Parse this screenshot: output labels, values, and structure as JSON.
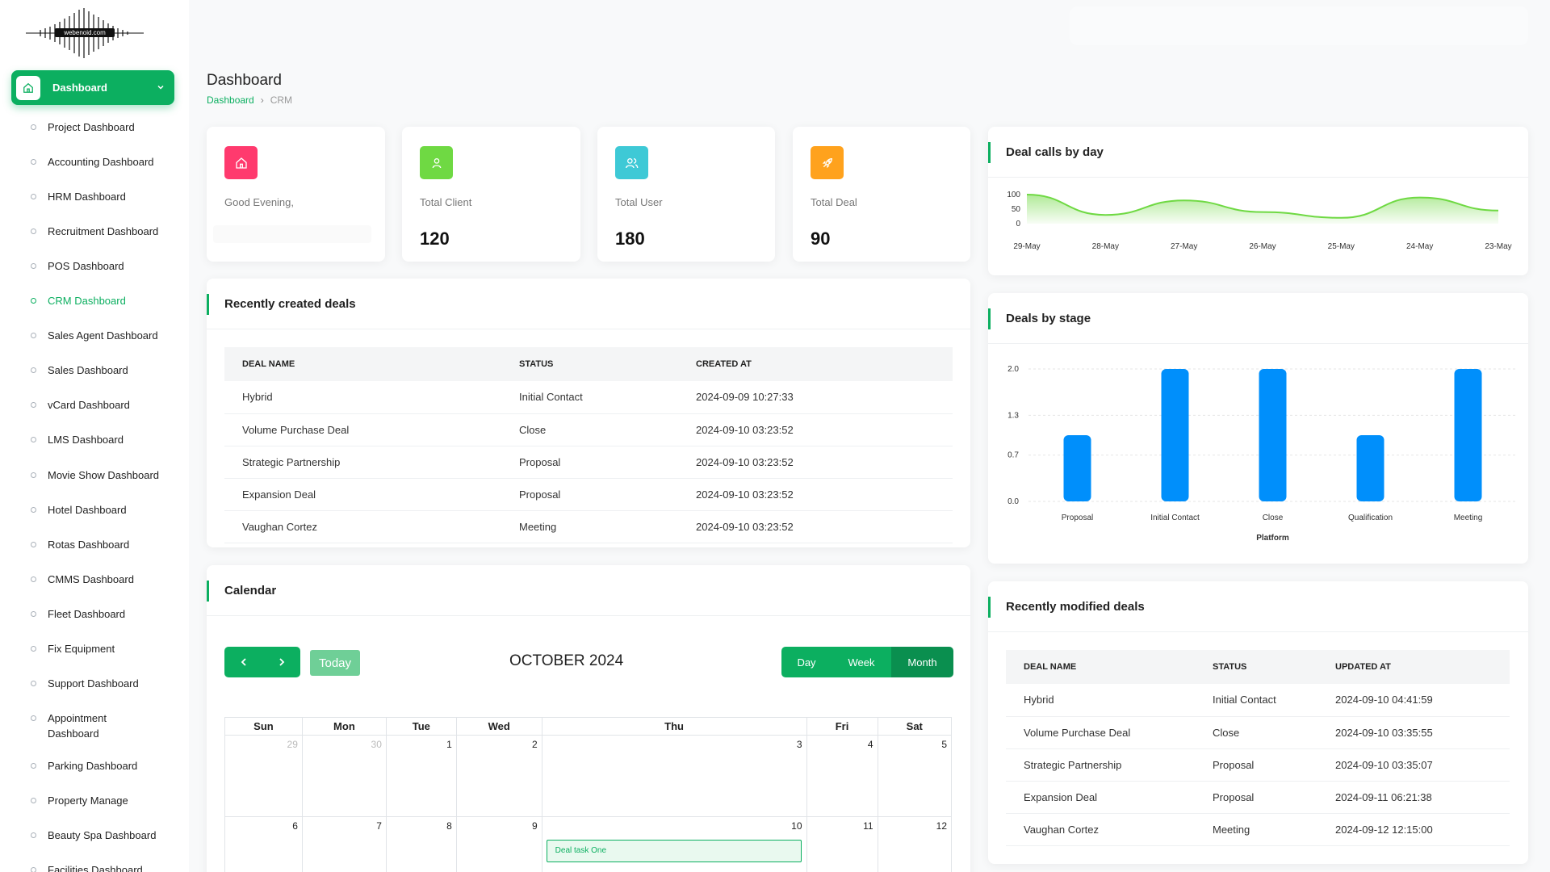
{
  "brand": {
    "logo_text": "webenoid.com"
  },
  "sidebar": {
    "main_label": "Dashboard",
    "items": [
      {
        "label": "Project Dashboard",
        "active": false
      },
      {
        "label": "Accounting Dashboard",
        "active": false
      },
      {
        "label": "HRM Dashboard",
        "active": false
      },
      {
        "label": "Recruitment Dashboard",
        "active": false
      },
      {
        "label": "POS Dashboard",
        "active": false
      },
      {
        "label": "CRM Dashboard",
        "active": true
      },
      {
        "label": "Sales Agent Dashboard",
        "active": false
      },
      {
        "label": "Sales Dashboard",
        "active": false
      },
      {
        "label": "vCard Dashboard",
        "active": false
      },
      {
        "label": "LMS Dashboard",
        "active": false
      },
      {
        "label": "Movie Show Dashboard",
        "active": false
      },
      {
        "label": "Hotel Dashboard",
        "active": false
      },
      {
        "label": "Rotas Dashboard",
        "active": false
      },
      {
        "label": "CMMS Dashboard",
        "active": false
      },
      {
        "label": "Fleet Dashboard",
        "active": false
      },
      {
        "label": "Fix Equipment",
        "active": false
      },
      {
        "label": "Support Dashboard",
        "active": false
      },
      {
        "label": "Appointment Dashboard",
        "active": false
      },
      {
        "label": "Parking Dashboard",
        "active": false
      },
      {
        "label": "Property Manage",
        "active": false
      },
      {
        "label": "Beauty Spa Dashboard",
        "active": false
      },
      {
        "label": "Facilities Dashboard",
        "active": false
      }
    ]
  },
  "header": {
    "title": "Dashboard",
    "breadcrumb": [
      "Dashboard",
      "CRM"
    ]
  },
  "stats": [
    {
      "label": "Good Evening,",
      "value": "",
      "color": "#ff3a6e",
      "icon": "home-icon"
    },
    {
      "label": "Total Client",
      "value": "120",
      "color": "#6fd943",
      "icon": "user-icon"
    },
    {
      "label": "Total User",
      "value": "180",
      "color": "#3ec9d6",
      "icon": "users-icon"
    },
    {
      "label": "Total Deal",
      "value": "90",
      "color": "#ffa21d",
      "icon": "rocket-icon"
    }
  ],
  "recent_deals": {
    "title": "Recently created deals",
    "columns": [
      "DEAL NAME",
      "STATUS",
      "CREATED AT"
    ],
    "rows": [
      [
        "Hybrid",
        "Initial Contact",
        "2024-09-09 10:27:33"
      ],
      [
        "Volume Purchase Deal",
        "Close",
        "2024-09-10 03:23:52"
      ],
      [
        "Strategic Partnership",
        "Proposal",
        "2024-09-10 03:23:52"
      ],
      [
        "Expansion Deal",
        "Proposal",
        "2024-09-10 03:23:52"
      ],
      [
        "Vaughan Cortez",
        "Meeting",
        "2024-09-10 03:23:52"
      ]
    ]
  },
  "calendar": {
    "title": "Calendar",
    "month_label": "OCTOBER 2024",
    "today_label": "Today",
    "prev_icon": "chevron-left-icon",
    "next_icon": "chevron-right-icon",
    "views": [
      "Day",
      "Week",
      "Month"
    ],
    "active_view": "Month",
    "weekdays": [
      "Sun",
      "Mon",
      "Tue",
      "Wed",
      "Thu",
      "Fri",
      "Sat"
    ],
    "weeks": [
      [
        {
          "d": "29",
          "other": true
        },
        {
          "d": "30",
          "other": true
        },
        {
          "d": "1"
        },
        {
          "d": "2"
        },
        {
          "d": "3"
        },
        {
          "d": "4"
        },
        {
          "d": "5"
        }
      ],
      [
        {
          "d": "6"
        },
        {
          "d": "7"
        },
        {
          "d": "8"
        },
        {
          "d": "9"
        },
        {
          "d": "10",
          "event": "Deal task One"
        },
        {
          "d": "11"
        },
        {
          "d": "12"
        }
      ]
    ]
  },
  "deal_calls": {
    "title": "Deal calls by day"
  },
  "deals_by_stage": {
    "title": "Deals by stage"
  },
  "recent_modified": {
    "title": "Recently modified deals",
    "columns": [
      "DEAL NAME",
      "STATUS",
      "UPDATED AT"
    ],
    "rows": [
      [
        "Hybrid",
        "Initial Contact",
        "2024-09-10 04:41:59"
      ],
      [
        "Volume Purchase Deal",
        "Close",
        "2024-09-10 03:35:55"
      ],
      [
        "Strategic Partnership",
        "Proposal",
        "2024-09-10 03:35:07"
      ],
      [
        "Expansion Deal",
        "Proposal",
        "2024-09-11 06:21:38"
      ],
      [
        "Vaughan Cortez",
        "Meeting",
        "2024-09-12 12:15:00"
      ]
    ]
  },
  "chart_data": [
    {
      "type": "area",
      "title": "Deal calls by day",
      "x": [
        "29-May",
        "28-May",
        "27-May",
        "26-May",
        "25-May",
        "24-May",
        "23-May"
      ],
      "series": [
        {
          "values": [
            100,
            30,
            80,
            40,
            20,
            90,
            45
          ]
        }
      ],
      "yticks": [
        0,
        50,
        100
      ],
      "ylim": [
        0,
        100
      ],
      "color": "#6fd943"
    },
    {
      "type": "bar",
      "title": "Deals by stage",
      "categories": [
        "Proposal",
        "Initial Contact",
        "Close",
        "Qualification",
        "Meeting"
      ],
      "values": [
        1,
        2,
        2,
        1,
        2
      ],
      "xlabel": "Platform",
      "yticks": [
        "0.0",
        "0.7",
        "1.3",
        "2.0"
      ],
      "ylim": [
        0,
        2
      ],
      "color": "#008ffb"
    }
  ]
}
